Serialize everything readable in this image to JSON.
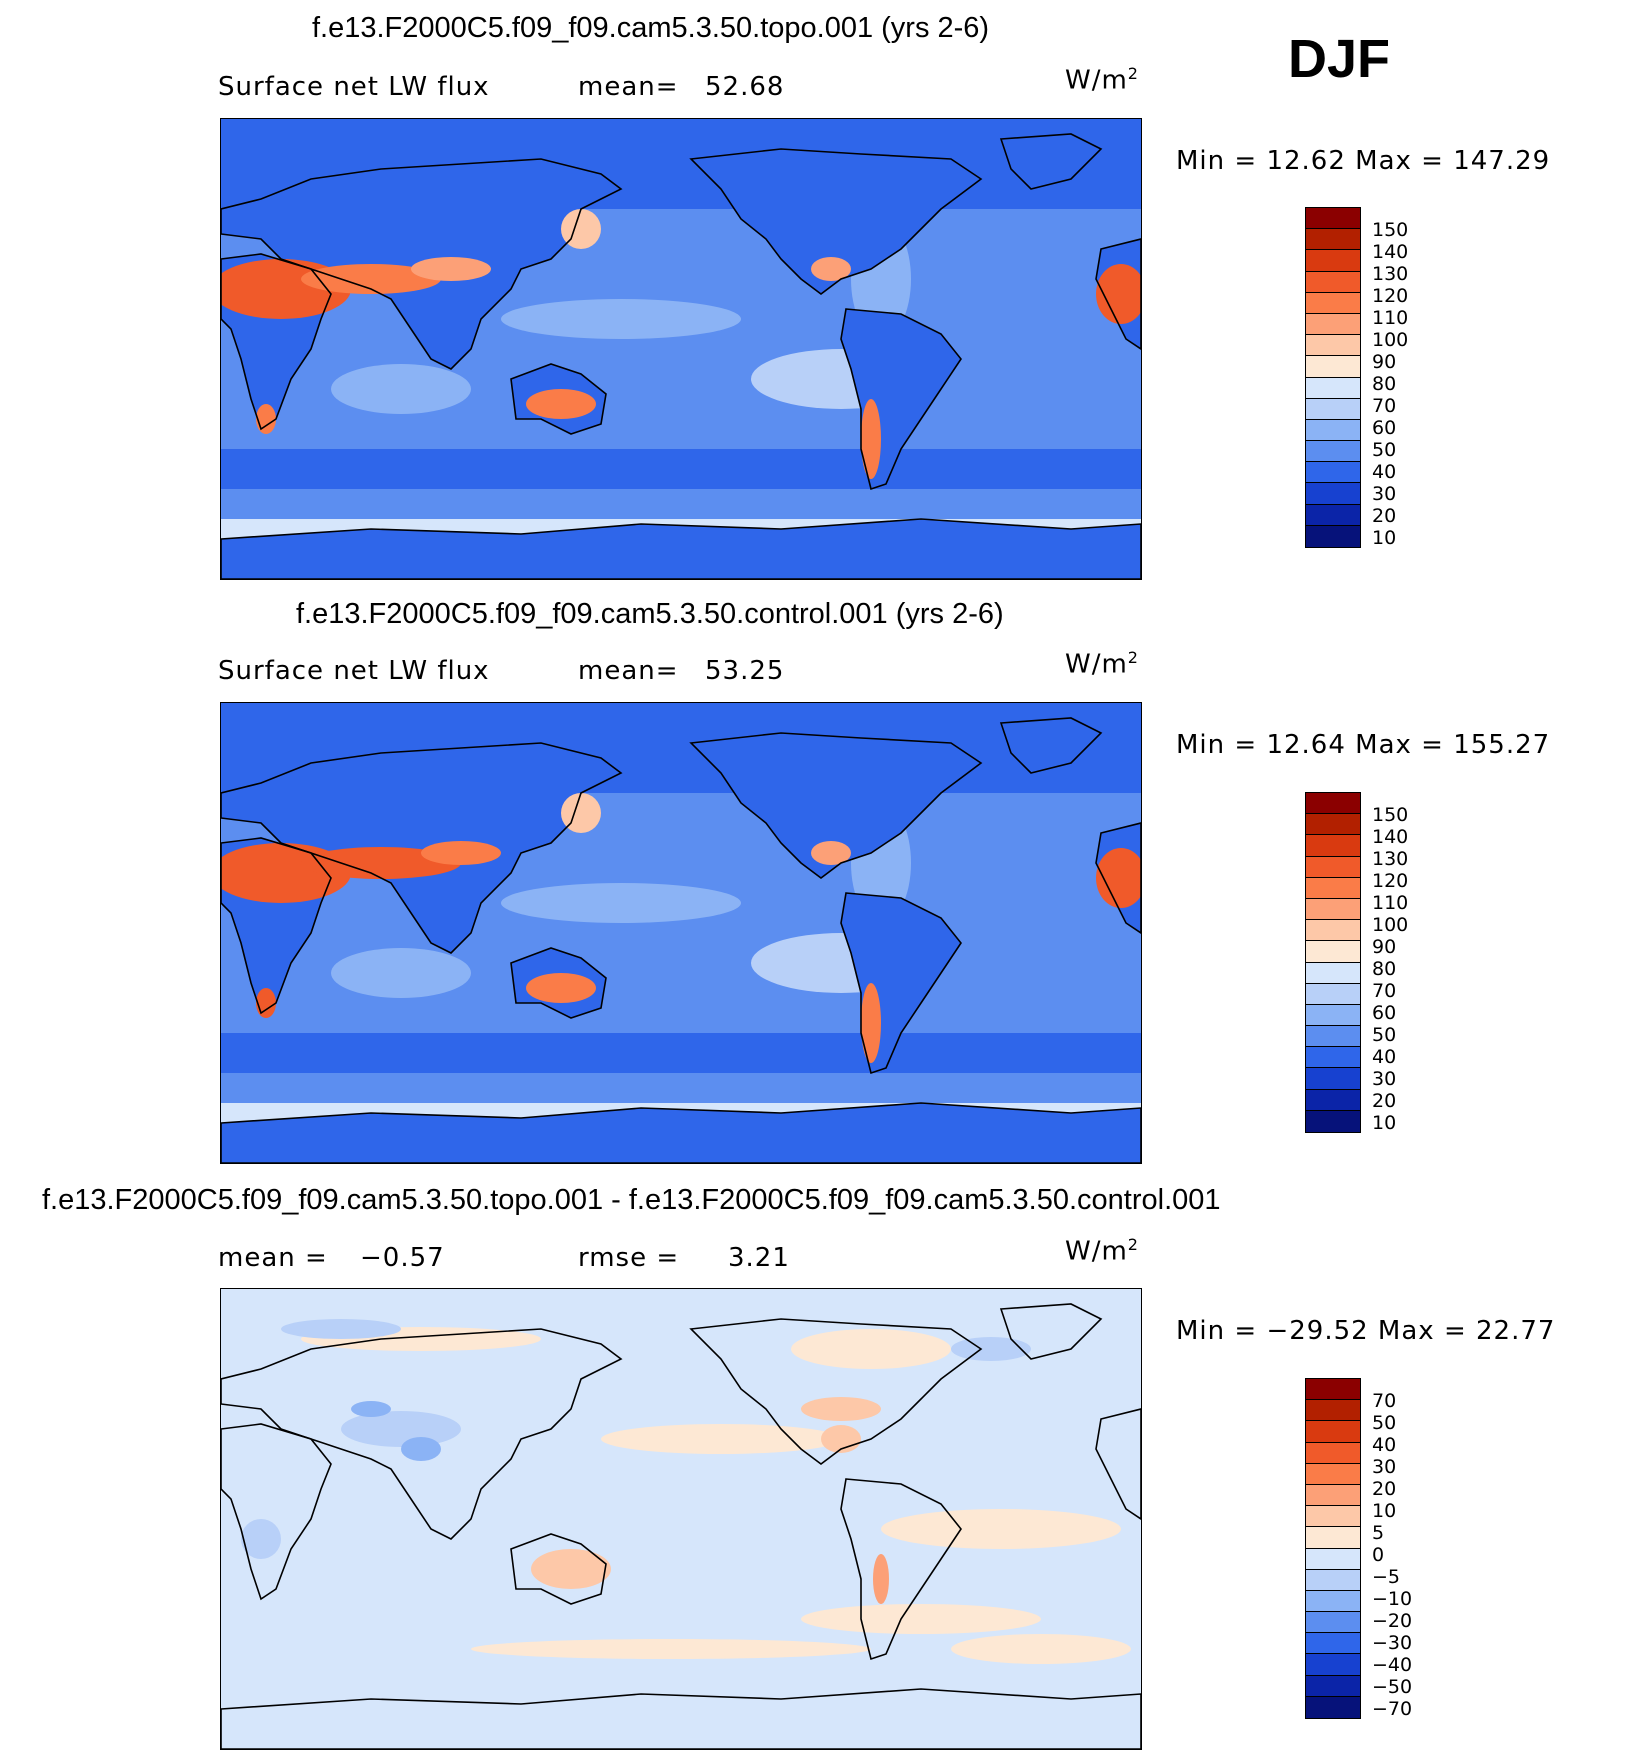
{
  "season": "DJF",
  "units_text": "W/m",
  "units_exp": "2",
  "panels": [
    {
      "title": "f.e13.F2000C5.f09_f09.cam5.3.50.topo.001 (yrs 2-6)",
      "left_text": "Surface net LW flux",
      "stat1_text": "mean=",
      "stat1_value": "52.68",
      "stat2_text": "",
      "stat2_value": "",
      "range_text": "Min =   12.62  Max =  147.29",
      "levels": [
        "150",
        "140",
        "130",
        "120",
        "110",
        "100",
        "90",
        "80",
        "70",
        "60",
        "50",
        "40",
        "30",
        "20",
        "10"
      ]
    },
    {
      "title": "f.e13.F2000C5.f09_f09.cam5.3.50.control.001 (yrs 2-6)",
      "left_text": "Surface net LW flux",
      "stat1_text": "mean=",
      "stat1_value": "53.25",
      "stat2_text": "",
      "stat2_value": "",
      "range_text": "Min =   12.64  Max =  155.27",
      "levels": [
        "150",
        "140",
        "130",
        "120",
        "110",
        "100",
        "90",
        "80",
        "70",
        "60",
        "50",
        "40",
        "30",
        "20",
        "10"
      ]
    },
    {
      "title": "f.e13.F2000C5.f09_f09.cam5.3.50.topo.001 - f.e13.F2000C5.f09_f09.cam5.3.50.control.001",
      "left_text": "mean =",
      "stat1_text": "",
      "stat1_value": "−0.57",
      "stat2_text": "rmse =",
      "stat2_value": "3.21",
      "range_text": "Min = −29.52  Max =   22.77",
      "levels": [
        "70",
        "50",
        "40",
        "30",
        "20",
        "10",
        "5",
        "0",
        "−5",
        "−10",
        "−20",
        "−30",
        "−40",
        "−50",
        "−70"
      ]
    }
  ],
  "colors": {
    "abs_scale": [
      "#8b0000",
      "#b22000",
      "#d93a10",
      "#f05a2a",
      "#fa7c48",
      "#fca077",
      "#fdc8a8",
      "#fde8d4",
      "#d6e6fb",
      "#b8d0f8",
      "#8bb3f5",
      "#5c8ef0",
      "#2f66ea",
      "#1741d0",
      "#0b24a8",
      "#06127a"
    ],
    "diff_scale": [
      "#8b0000",
      "#b22000",
      "#d93a10",
      "#f05a2a",
      "#fa7c48",
      "#fca077",
      "#fdc8a8",
      "#fde8d4",
      "#d6e6fb",
      "#b8d0f8",
      "#8bb3f5",
      "#5c8ef0",
      "#2f66ea",
      "#1741d0",
      "#0b24a8",
      "#06127a"
    ]
  }
}
